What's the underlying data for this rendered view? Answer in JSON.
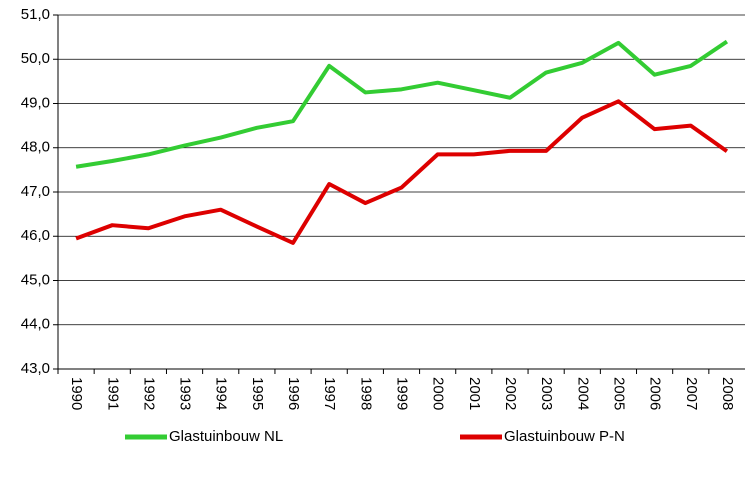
{
  "chart_data": {
    "type": "line",
    "categories": [
      "1990",
      "1991",
      "1992",
      "1993",
      "1994",
      "1995",
      "1996",
      "1997",
      "1998",
      "1999",
      "2000",
      "2001",
      "2002",
      "2003",
      "2004",
      "2005",
      "2006",
      "2007",
      "2008"
    ],
    "series": [
      {
        "name": "Glastuinbouw NL",
        "color": "#33cc33",
        "values": [
          47.57,
          47.7,
          47.85,
          48.05,
          48.23,
          48.45,
          48.6,
          49.85,
          49.25,
          49.32,
          49.47,
          49.3,
          49.13,
          49.7,
          49.92,
          50.37,
          49.65,
          49.85,
          50.4
        ]
      },
      {
        "name": "Glastuinbouw P-N",
        "color": "#dd0000",
        "values": [
          45.95,
          46.25,
          46.18,
          46.45,
          46.6,
          46.22,
          45.85,
          47.18,
          46.75,
          47.1,
          47.85,
          47.85,
          47.93,
          47.93,
          48.68,
          49.05,
          48.42,
          48.5,
          47.92
        ]
      }
    ],
    "ylim": [
      43,
      51
    ],
    "yticks": [
      {
        "value": 43,
        "label": "43,0"
      },
      {
        "value": 44,
        "label": "44,0"
      },
      {
        "value": 45,
        "label": "45,0"
      },
      {
        "value": 46,
        "label": "46,0"
      },
      {
        "value": 47,
        "label": "47,0"
      },
      {
        "value": 48,
        "label": "48,0"
      },
      {
        "value": 49,
        "label": "49,0"
      },
      {
        "value": 50,
        "label": "50,0"
      },
      {
        "value": 51,
        "label": "51,0"
      }
    ],
    "grid": true
  }
}
